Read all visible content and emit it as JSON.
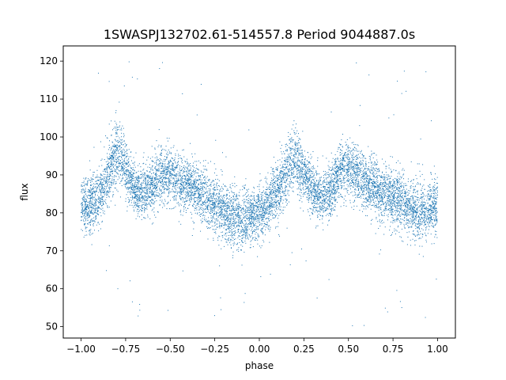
{
  "chart_data": {
    "type": "scatter",
    "title": "1SWASPJ132702.61-514557.8 Period 9044887.0s",
    "xlabel": "phase",
    "ylabel": "flux",
    "xlim": [
      -1.1,
      1.1
    ],
    "ylim": [
      47,
      124
    ],
    "xticks": [
      -1.0,
      -0.75,
      -0.5,
      -0.25,
      0.0,
      0.25,
      0.5,
      0.75,
      1.0
    ],
    "xtick_labels": [
      "−1.00",
      "−0.75",
      "−0.50",
      "−0.25",
      "0.00",
      "0.25",
      "0.50",
      "0.75",
      "1.00"
    ],
    "yticks": [
      50,
      60,
      70,
      80,
      90,
      100,
      110,
      120
    ],
    "ytick_labels": [
      "50",
      "60",
      "70",
      "80",
      "90",
      "100",
      "110",
      "120"
    ],
    "grid": false,
    "legend": "none",
    "series_color": "#1f77b4",
    "mean_curve": {
      "x": [
        -1.0,
        -0.95,
        -0.9,
        -0.85,
        -0.8,
        -0.75,
        -0.7,
        -0.65,
        -0.6,
        -0.55,
        -0.5,
        -0.45,
        -0.4,
        -0.35,
        -0.3,
        -0.25,
        -0.2,
        -0.15,
        -0.1,
        -0.05,
        0.0,
        0.05,
        0.1,
        0.15,
        0.2,
        0.25,
        0.3,
        0.35,
        0.4,
        0.45,
        0.5,
        0.55,
        0.6,
        0.65,
        0.7,
        0.75,
        0.8,
        0.85,
        0.9,
        0.95,
        1.0
      ],
      "y": [
        82,
        82,
        84,
        90,
        96,
        92,
        86,
        86,
        87,
        90,
        90,
        88,
        88,
        86,
        84,
        82,
        80,
        79,
        78,
        79,
        80,
        82,
        86,
        90,
        95,
        90,
        86,
        84,
        86,
        90,
        92,
        90,
        88,
        87,
        85,
        84,
        83,
        81,
        80,
        81,
        82
      ]
    },
    "scatter_half_width": [
      8,
      8,
      8,
      9,
      9,
      8,
      7,
      7,
      8,
      8,
      8,
      8,
      8,
      8,
      8,
      8,
      8,
      9,
      9,
      8,
      8,
      8,
      8,
      9,
      9,
      8,
      7,
      7,
      8,
      8,
      8,
      8,
      8,
      8,
      8,
      8,
      8,
      8,
      9,
      8,
      8
    ],
    "outlier_range": [
      50,
      120
    ]
  }
}
